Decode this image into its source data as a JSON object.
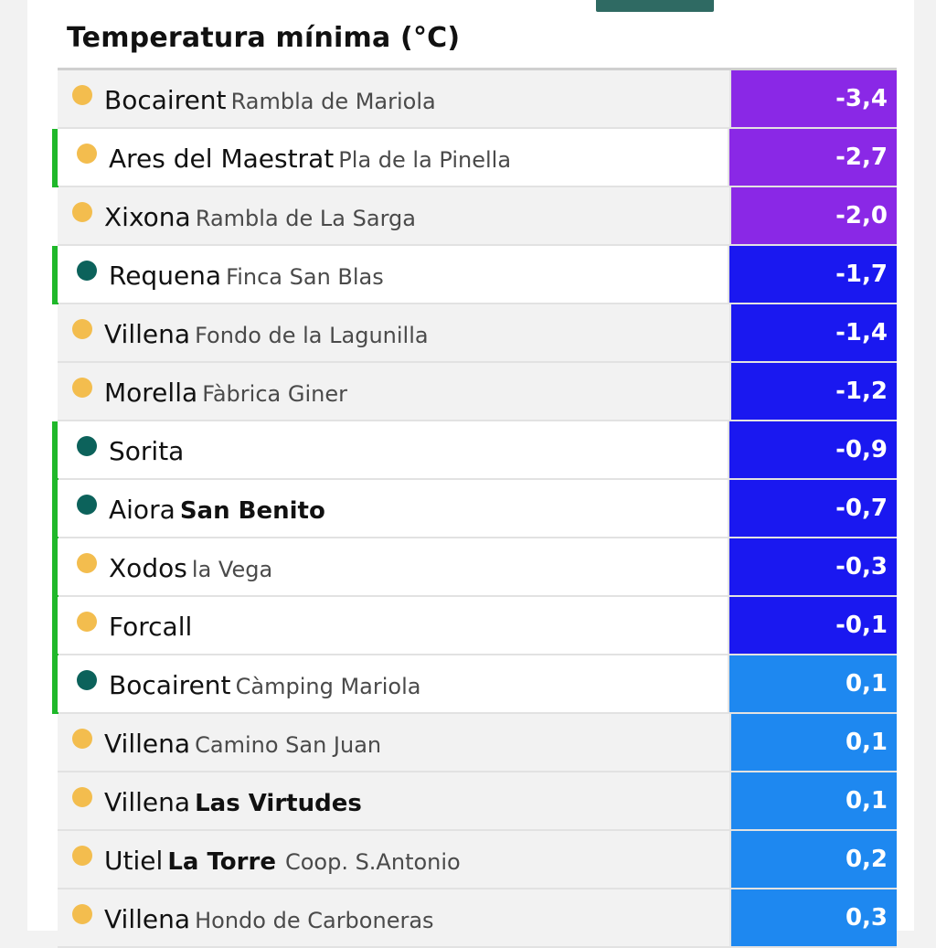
{
  "header": {
    "title": "Temperatura mínima (°C)"
  },
  "colors": {
    "violet": "#8a28e6",
    "blue": "#1a18f0",
    "light_blue": "#1e88f0",
    "marker_green": "#1fb82a",
    "dot_yellow": "#f3bd4e",
    "dot_teal": "#0c625b"
  },
  "rows": [
    {
      "city": "Bocairent",
      "place": "Rambla de Mariola",
      "place_bold": false,
      "extra": "",
      "value": "-3,4",
      "dot": "yellow",
      "marked": false,
      "color": "#8a28e6"
    },
    {
      "city": "Ares del Maestrat",
      "place": "Pla de la Pinella",
      "place_bold": false,
      "extra": "",
      "value": "-2,7",
      "dot": "yellow",
      "marked": true,
      "color": "#8a28e6"
    },
    {
      "city": "Xixona",
      "place": "Rambla de La Sarga",
      "place_bold": false,
      "extra": "",
      "value": "-2,0",
      "dot": "yellow",
      "marked": false,
      "color": "#8a28e6"
    },
    {
      "city": "Requena",
      "place": "Finca San Blas",
      "place_bold": false,
      "extra": "",
      "value": "-1,7",
      "dot": "teal",
      "marked": true,
      "color": "#1a18f0"
    },
    {
      "city": "Villena",
      "place": "Fondo de la Lagunilla",
      "place_bold": false,
      "extra": "",
      "value": "-1,4",
      "dot": "yellow",
      "marked": false,
      "color": "#1a18f0"
    },
    {
      "city": "Morella",
      "place": "Fàbrica Giner",
      "place_bold": false,
      "extra": "",
      "value": "-1,2",
      "dot": "yellow",
      "marked": false,
      "color": "#1a18f0"
    },
    {
      "city": "Sorita",
      "place": "",
      "place_bold": false,
      "extra": "",
      "value": "-0,9",
      "dot": "teal",
      "marked": true,
      "color": "#1a18f0"
    },
    {
      "city": "Aiora",
      "place": "San Benito",
      "place_bold": true,
      "extra": "",
      "value": "-0,7",
      "dot": "teal",
      "marked": true,
      "color": "#1a18f0"
    },
    {
      "city": "Xodos",
      "place": "la Vega",
      "place_bold": false,
      "extra": "",
      "value": "-0,3",
      "dot": "yellow",
      "marked": true,
      "color": "#1a18f0"
    },
    {
      "city": "Forcall",
      "place": "",
      "place_bold": false,
      "extra": "",
      "value": "-0,1",
      "dot": "yellow",
      "marked": true,
      "color": "#1a18f0"
    },
    {
      "city": "Bocairent",
      "place": "Càmping Mariola",
      "place_bold": false,
      "extra": "",
      "value": "0,1",
      "dot": "teal",
      "marked": true,
      "color": "#1e88f0"
    },
    {
      "city": "Villena",
      "place": "Camino San Juan",
      "place_bold": false,
      "extra": "",
      "value": "0,1",
      "dot": "yellow",
      "marked": false,
      "color": "#1e88f0"
    },
    {
      "city": "Villena",
      "place": "Las Virtudes",
      "place_bold": true,
      "extra": "",
      "value": "0,1",
      "dot": "yellow",
      "marked": false,
      "color": "#1e88f0"
    },
    {
      "city": "Utiel",
      "place": "La Torre",
      "place_bold": true,
      "extra": "Coop. S.Antonio",
      "value": "0,2",
      "dot": "yellow",
      "marked": false,
      "color": "#1e88f0"
    },
    {
      "city": "Villena",
      "place": "Hondo de Carboneras",
      "place_bold": false,
      "extra": "",
      "value": "0,3",
      "dot": "yellow",
      "marked": false,
      "color": "#1e88f0"
    }
  ]
}
